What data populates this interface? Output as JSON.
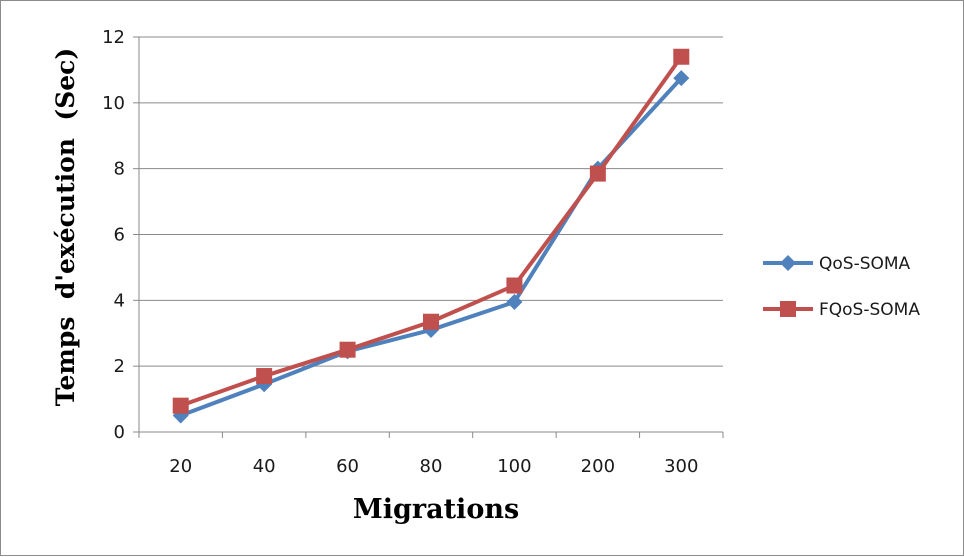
{
  "chart_data": {
    "type": "line",
    "title": "",
    "xlabel": "Migrations",
    "ylabel": "Temps  d'exécution  (Sec)",
    "categories": [
      "20",
      "40",
      "60",
      "80",
      "100",
      "200",
      "300"
    ],
    "ylim": [
      0,
      12
    ],
    "yticks": [
      0,
      2,
      4,
      6,
      8,
      10,
      12
    ],
    "grid": true,
    "legend_position": "right",
    "series": [
      {
        "name": "QoS-SOMA",
        "color": "#4F81BD",
        "marker": "diamond",
        "values": [
          0.5,
          1.45,
          2.45,
          3.1,
          3.95,
          8.0,
          10.75
        ]
      },
      {
        "name": "FQoS-SOMA",
        "color": "#C0504D",
        "marker": "square",
        "values": [
          0.8,
          1.7,
          2.5,
          3.35,
          4.45,
          7.85,
          11.4
        ]
      }
    ]
  }
}
